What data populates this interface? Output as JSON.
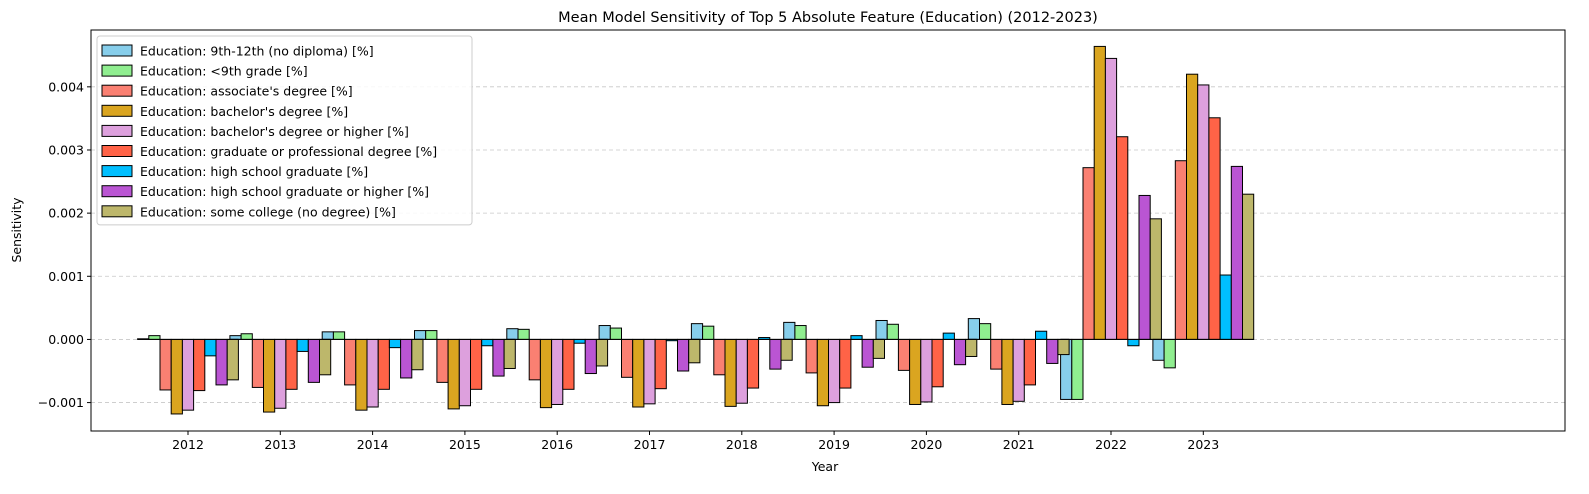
{
  "chart_data": {
    "type": "bar",
    "title": "Mean Model Sensitivity of Top 5 Absolute Feature (Education) (2012-2023)",
    "xlabel": "Year",
    "ylabel": "Sensitivity",
    "categories": [
      "2012",
      "2013",
      "2014",
      "2015",
      "2016",
      "2017",
      "2018",
      "2019",
      "2020",
      "2021",
      "2022",
      "2023"
    ],
    "ylim": [
      -0.00145,
      0.0049
    ],
    "yticks": [
      -0.001,
      0.0,
      0.001,
      0.002,
      0.003,
      0.004
    ],
    "ytick_labels": [
      "−0.001",
      "0.000",
      "0.001",
      "0.002",
      "0.003",
      "0.004"
    ],
    "grid": "horizontal dashed",
    "legend_position": "top-left",
    "series": [
      {
        "name": "Education: 9th-12th (no diploma) [%]",
        "color": "#87CEEB",
        "values": [
          1e-05,
          6e-05,
          0.00012,
          0.00014,
          0.00017,
          0.00022,
          0.00025,
          0.00027,
          0.0003,
          0.00033,
          -0.00095,
          -0.00033
        ]
      },
      {
        "name": "Education: <9th grade [%]",
        "color": "#90EE90",
        "values": [
          6e-05,
          9e-05,
          0.00012,
          0.00014,
          0.00016,
          0.00018,
          0.00021,
          0.00022,
          0.00024,
          0.00025,
          -0.00095,
          -0.00045
        ]
      },
      {
        "name": "Education: associate's degree [%]",
        "color": "#FA8072",
        "values": [
          -0.0008,
          -0.00076,
          -0.00072,
          -0.00068,
          -0.00064,
          -0.0006,
          -0.00056,
          -0.00053,
          -0.00049,
          -0.00047,
          0.00272,
          0.00283
        ]
      },
      {
        "name": "Education: bachelor's degree [%]",
        "color": "#DAA520",
        "values": [
          -0.00118,
          -0.00115,
          -0.00112,
          -0.0011,
          -0.00108,
          -0.00107,
          -0.00106,
          -0.00105,
          -0.00103,
          -0.00103,
          0.00464,
          0.0042
        ]
      },
      {
        "name": "Education: bachelor's degree or higher [%]",
        "color": "#DDA0DD",
        "values": [
          -0.00112,
          -0.00109,
          -0.00107,
          -0.00105,
          -0.00103,
          -0.00102,
          -0.00101,
          -0.001,
          -0.00099,
          -0.00098,
          0.00445,
          0.00403
        ]
      },
      {
        "name": "Education: graduate or professional degree [%]",
        "color": "#FF6347",
        "values": [
          -0.00081,
          -0.00079,
          -0.00079,
          -0.00079,
          -0.00079,
          -0.00078,
          -0.00077,
          -0.00077,
          -0.00075,
          -0.00072,
          0.00321,
          0.00351
        ]
      },
      {
        "name": "Education: high school graduate [%]",
        "color": "#00BFFF",
        "values": [
          -0.00026,
          -0.00019,
          -0.00013,
          -0.0001,
          -6e-05,
          -2e-05,
          3e-05,
          6e-05,
          0.0001,
          0.00013,
          -0.0001,
          0.00102
        ]
      },
      {
        "name": "Education: high school graduate or higher [%]",
        "color": "#BA55D3",
        "values": [
          -0.00072,
          -0.00068,
          -0.00061,
          -0.00058,
          -0.00054,
          -0.0005,
          -0.00047,
          -0.00044,
          -0.0004,
          -0.00038,
          0.00228,
          0.00274
        ]
      },
      {
        "name": "Education: some college (no degree) [%]",
        "color": "#BDB76B",
        "values": [
          -0.00064,
          -0.00056,
          -0.00048,
          -0.00046,
          -0.00042,
          -0.00037,
          -0.00033,
          -0.0003,
          -0.00027,
          -0.00024,
          0.00191,
          0.0023
        ]
      }
    ]
  }
}
